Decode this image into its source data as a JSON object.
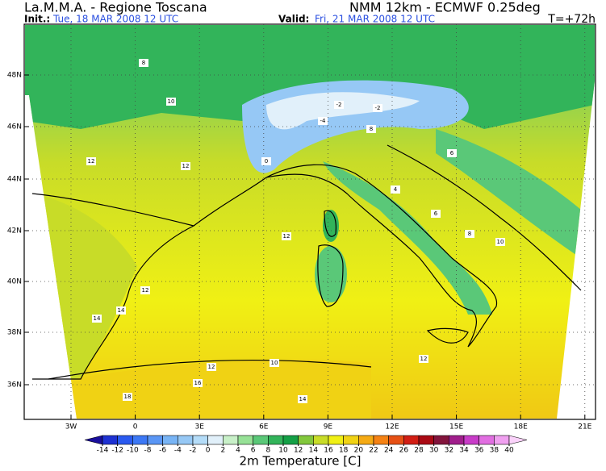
{
  "header": {
    "title": "La.M.M.A. - Regione Toscana",
    "model": "NMM 12km - ECMWF 0.25deg",
    "init_label": "Init.:",
    "init_time": "Tue, 18 MAR 2008 12 UTC",
    "valid_label": "Valid:",
    "valid_time": "Fri, 21 MAR 2008 12 UTC",
    "lead_time": "T=+72h"
  },
  "map": {
    "lat_labels": [
      "48N",
      "46N",
      "44N",
      "42N",
      "40N",
      "38N",
      "36N"
    ],
    "lon_labels": [
      "3W",
      "0",
      "3E",
      "6E",
      "9E",
      "12E",
      "15E",
      "18E",
      "21E"
    ],
    "contour_labels": [
      "8",
      "10",
      "12",
      "12",
      "-2",
      "-2",
      "-4",
      "0",
      "4",
      "6",
      "8",
      "10",
      "12",
      "12",
      "14",
      "14",
      "16",
      "14",
      "12",
      "10",
      "8",
      "6",
      "18",
      "12"
    ]
  },
  "colorbar": {
    "label": "2m Temperature [C]",
    "ticks": [
      -14,
      -12,
      -10,
      -8,
      -6,
      -4,
      -2,
      0,
      2,
      4,
      6,
      8,
      10,
      12,
      14,
      16,
      18,
      20,
      22,
      24,
      26,
      28,
      30,
      32,
      34,
      36,
      38,
      40
    ],
    "colors": [
      "#1a0f9c",
      "#1e32d2",
      "#2a5af0",
      "#3c78f5",
      "#5a96f5",
      "#78b4f5",
      "#96c8f5",
      "#b4dcf8",
      "#e1f0fa",
      "#c8f0c8",
      "#96e196",
      "#5ac878",
      "#32b45a",
      "#14a046",
      "#82c83c",
      "#c8dc28",
      "#f0f014",
      "#f0d214",
      "#f5aa14",
      "#f58214",
      "#e65014",
      "#d21e14",
      "#aa0a14",
      "#82143c",
      "#a01e8c",
      "#c83cc8",
      "#e16ee1",
      "#f0a0f0",
      "#fad2fa"
    ]
  }
}
